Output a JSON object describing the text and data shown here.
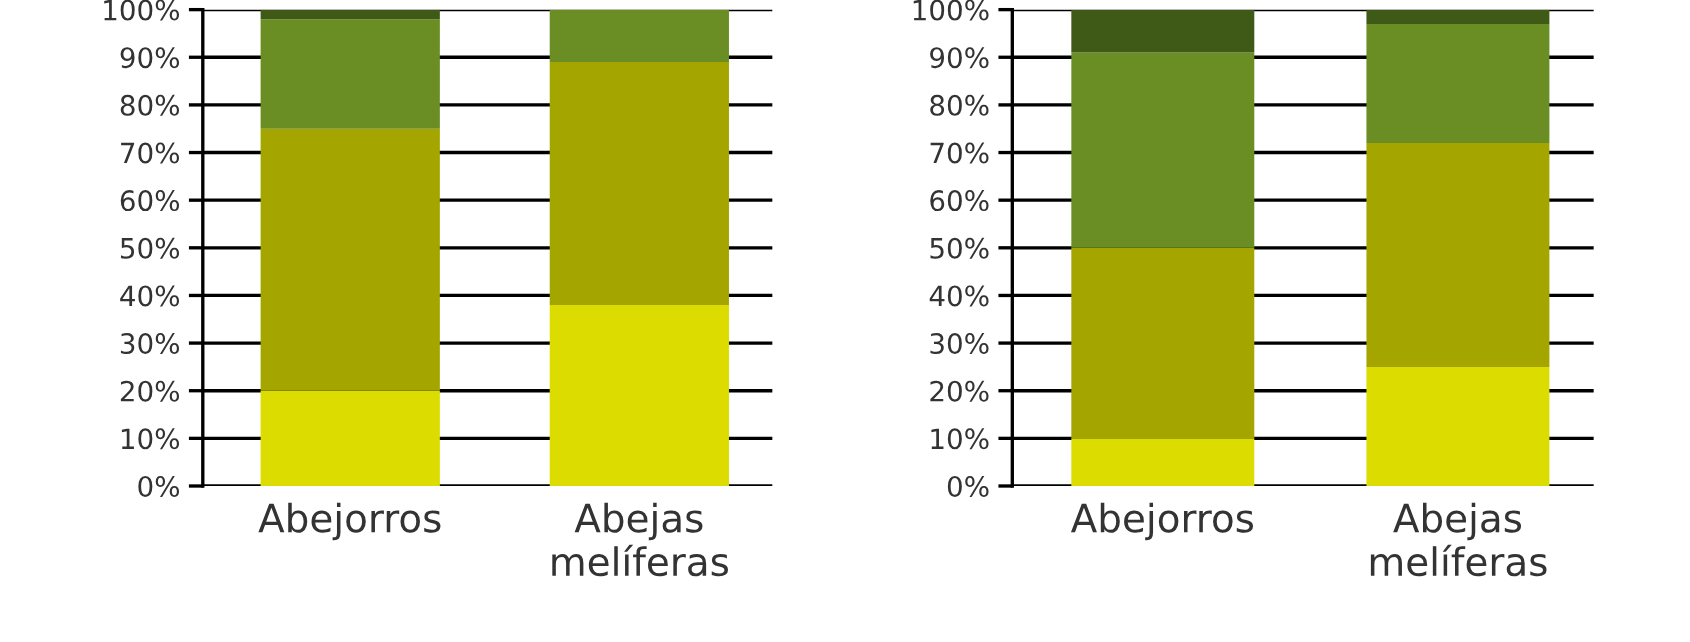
{
  "chart_data": [
    {
      "type": "bar",
      "stacked": true,
      "categories": [
        "Abejorros",
        "Abejas\nmelíferas"
      ],
      "ylim": [
        0,
        100
      ],
      "grid": "y",
      "yticks": [
        {
          "value": 0,
          "label": "0%"
        },
        {
          "value": 10,
          "label": "10%"
        },
        {
          "value": 20,
          "label": "20%"
        },
        {
          "value": 30,
          "label": "30%"
        },
        {
          "value": 40,
          "label": "40%"
        },
        {
          "value": 50,
          "label": "50%"
        },
        {
          "value": 60,
          "label": "60%"
        },
        {
          "value": 70,
          "label": "70%"
        },
        {
          "value": 80,
          "label": "80%"
        },
        {
          "value": 90,
          "label": "90%"
        },
        {
          "value": 100,
          "label": "100%"
        }
      ],
      "series": [
        {
          "color": "#dcdc00",
          "values": [
            20,
            38
          ]
        },
        {
          "color": "#a5a500",
          "values": [
            55,
            51
          ]
        },
        {
          "color": "#6a8e23",
          "values": [
            23,
            11
          ]
        },
        {
          "color": "#3f5a17",
          "values": [
            2,
            0
          ]
        }
      ]
    },
    {
      "type": "bar",
      "stacked": true,
      "categories": [
        "Abejorros",
        "Abejas\nmelíferas"
      ],
      "ylim": [
        0,
        100
      ],
      "grid": "y",
      "yticks": [
        {
          "value": 0,
          "label": "0%"
        },
        {
          "value": 10,
          "label": "10%"
        },
        {
          "value": 20,
          "label": "20%"
        },
        {
          "value": 30,
          "label": "30%"
        },
        {
          "value": 40,
          "label": "40%"
        },
        {
          "value": 50,
          "label": "50%"
        },
        {
          "value": 60,
          "label": "60%"
        },
        {
          "value": 70,
          "label": "70%"
        },
        {
          "value": 80,
          "label": "80%"
        },
        {
          "value": 90,
          "label": "90%"
        },
        {
          "value": 100,
          "label": "100%"
        }
      ],
      "series": [
        {
          "color": "#dcdc00",
          "values": [
            10,
            25
          ]
        },
        {
          "color": "#a5a500",
          "values": [
            40,
            47
          ]
        },
        {
          "color": "#6a8e23",
          "values": [
            41,
            25
          ]
        },
        {
          "color": "#3f5a17",
          "values": [
            9,
            3
          ]
        }
      ]
    }
  ]
}
